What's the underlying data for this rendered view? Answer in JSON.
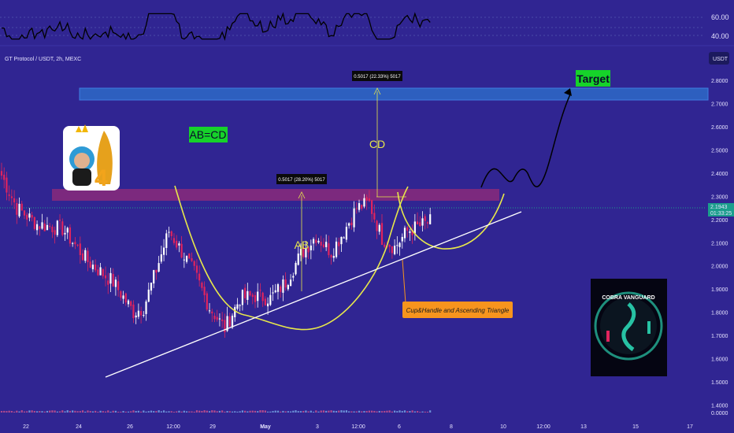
{
  "header": {
    "symbol_title": "GT Protocol / USDT, 2h, MEXC",
    "currency": "USDT"
  },
  "price_axis": {
    "ticks": [
      "2.8000",
      "2.7000",
      "2.6000",
      "2.5000",
      "2.4000",
      "2.3000",
      "2.2000",
      "2.1000",
      "2.0000",
      "1.9000",
      "1.8000",
      "1.7000",
      "1.6000",
      "1.5000",
      "1.4000"
    ],
    "volume_tick": "0.0000"
  },
  "current_price": {
    "value": "2.1943",
    "countdown": "01:33:25",
    "color": "#1b9e8c"
  },
  "oscillator": {
    "ticks": [
      "60.00",
      "40.00"
    ]
  },
  "time_axis": {
    "labels": [
      "22",
      "24",
      "26",
      "12:00",
      "29",
      "May",
      "3",
      "12:00",
      "6",
      "8",
      "10",
      "12:00",
      "13",
      "15",
      "17"
    ]
  },
  "annotations": {
    "pattern_label": "AB=CD",
    "ab_label": "AB",
    "cd_label": "CD",
    "ab_measure": "0.5017 (28.20%) 5017",
    "cd_measure": "0.5017 (22.33%) 5017",
    "target_label": "Target",
    "pattern_callout": "Cup&Handle and Ascending Triangle",
    "brand_name": "COBRA VANGUARD"
  },
  "colors": {
    "background": "#302592",
    "up_candle": "#ffffff",
    "down_candle": "#e0245e",
    "target_zone": "#2d5fbf",
    "resistance_zone": "#8a2a7a",
    "cup_curve": "#e8e84a",
    "target_label_bg": "#16d22a",
    "callout_bg": "#f7941d"
  },
  "chart_data": {
    "type": "candlestick",
    "title": "GT Protocol / USDT, 2h, MEXC",
    "y_range": [
      1.33,
      2.95
    ],
    "candle_count": 170,
    "close_path_anchors": [
      [
        0,
        2.39
      ],
      [
        6,
        2.25
      ],
      [
        14,
        2.18
      ],
      [
        24,
        2.16
      ],
      [
        34,
        2.02
      ],
      [
        44,
        1.93
      ],
      [
        52,
        1.8
      ],
      [
        56,
        1.82
      ],
      [
        60,
        1.95
      ],
      [
        66,
        2.15
      ],
      [
        70,
        2.08
      ],
      [
        76,
        1.97
      ],
      [
        82,
        1.82
      ],
      [
        88,
        1.73
      ],
      [
        94,
        1.86
      ],
      [
        100,
        1.87
      ],
      [
        106,
        1.86
      ],
      [
        112,
        1.93
      ],
      [
        118,
        2.05
      ],
      [
        124,
        2.13
      ],
      [
        130,
        2.06
      ],
      [
        135,
        2.15
      ],
      [
        140,
        2.25
      ],
      [
        145,
        2.27
      ],
      [
        150,
        2.12
      ],
      [
        155,
        2.08
      ],
      [
        160,
        2.15
      ],
      [
        169,
        2.19
      ]
    ],
    "target_zone": [
      2.705,
      2.755
    ],
    "resistance_zone": [
      2.255,
      2.305
    ],
    "trendline": {
      "start_index": 42,
      "start_price": 1.42,
      "end_index": 210,
      "end_price": 2.17
    },
    "projection_target_price": 2.75,
    "oscillator_range": [
      40,
      60
    ]
  }
}
